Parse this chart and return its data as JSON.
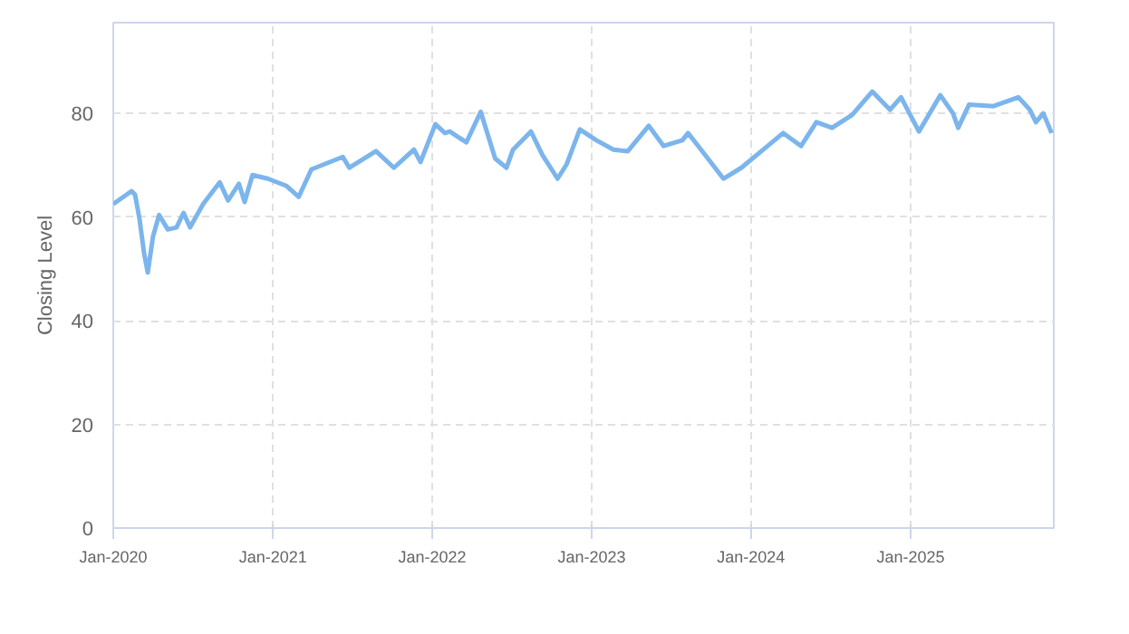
{
  "chart_data": {
    "type": "line",
    "ylabel": "Closing Level",
    "x": [
      "2020-01-01",
      "2020-02-12",
      "2020-02-20",
      "2020-03-01",
      "2020-03-12",
      "2020-03-20",
      "2020-04-01",
      "2020-04-15",
      "2020-05-05",
      "2020-05-25",
      "2020-06-10",
      "2020-06-25",
      "2020-07-25",
      "2020-09-01",
      "2020-09-20",
      "2020-10-15",
      "2020-10-28",
      "2020-11-15",
      "2020-12-20",
      "2021-02-01",
      "2021-03-01",
      "2021-03-30",
      "2021-06-10",
      "2021-06-25",
      "2021-08-25",
      "2021-10-05",
      "2021-11-20",
      "2021-12-05",
      "2022-01-08",
      "2022-01-30",
      "2022-02-10",
      "2022-03-20",
      "2022-04-22",
      "2022-05-25",
      "2022-06-20",
      "2022-07-05",
      "2022-08-15",
      "2022-09-10",
      "2022-10-15",
      "2022-11-05",
      "2022-12-05",
      "2023-01-12",
      "2023-02-20",
      "2023-03-25",
      "2023-05-12",
      "2023-06-15",
      "2023-07-28",
      "2023-08-10",
      "2023-09-18",
      "2023-10-30",
      "2023-12-10",
      "2024-01-25",
      "2024-03-15",
      "2024-04-25",
      "2024-05-30",
      "2024-07-05",
      "2024-08-20",
      "2024-10-05",
      "2024-11-15",
      "2024-12-10",
      "2025-01-20",
      "2025-03-10",
      "2025-04-08",
      "2025-04-20",
      "2025-05-15",
      "2025-07-10",
      "2025-09-05",
      "2025-10-01",
      "2025-10-15",
      "2025-11-01",
      "2025-11-20"
    ],
    "series": [
      {
        "color": "#7cb5ec",
        "values": [
          62.5,
          65.0,
          64.3,
          59.7,
          52.8,
          49.3,
          56.2,
          60.4,
          57.6,
          58.0,
          60.8,
          58.0,
          62.5,
          66.7,
          63.2,
          66.4,
          62.9,
          68.1,
          67.4,
          66.0,
          63.9,
          69.2,
          71.6,
          69.5,
          72.7,
          69.5,
          73.0,
          70.6,
          77.9,
          76.2,
          76.5,
          74.4,
          80.3,
          71.3,
          69.5,
          73.0,
          76.5,
          72.0,
          67.4,
          70.2,
          76.9,
          74.8,
          73.0,
          72.7,
          77.6,
          73.7,
          74.8,
          76.2,
          72.0,
          67.4,
          69.5,
          72.7,
          76.2,
          73.7,
          78.3,
          77.2,
          79.7,
          84.2,
          80.7,
          83.1,
          76.5,
          83.5,
          80.0,
          77.2,
          81.7,
          81.4,
          83.1,
          80.7,
          78.3,
          80.0,
          76.2
        ]
      }
    ],
    "xlim": [
      "2020-01-01",
      "2025-11-25"
    ],
    "xticks": [
      {
        "value": "2020-01-01",
        "label": "Jan-2020"
      },
      {
        "value": "2021-01-01",
        "label": "Jan-2021"
      },
      {
        "value": "2022-01-01",
        "label": "Jan-2022"
      },
      {
        "value": "2023-01-01",
        "label": "Jan-2023"
      },
      {
        "value": "2024-01-01",
        "label": "Jan-2024"
      },
      {
        "value": "2025-01-01",
        "label": "Jan-2025"
      }
    ],
    "ylim": [
      0,
      97.5
    ],
    "yticks": [
      0,
      20,
      40,
      60,
      80
    ],
    "grid": true,
    "line_style": "solid"
  }
}
